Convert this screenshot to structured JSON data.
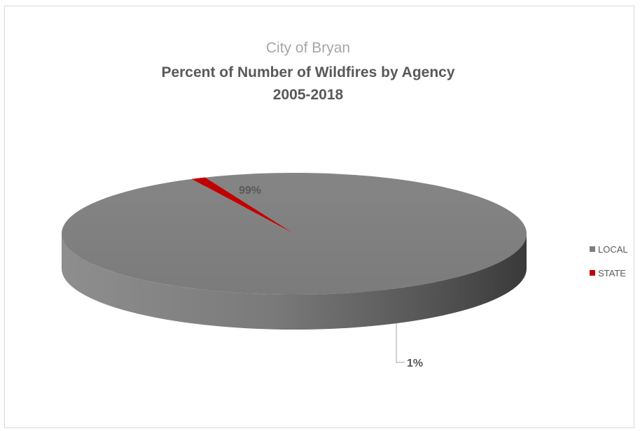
{
  "chart_data": {
    "type": "pie",
    "subtitle": "City of Bryan",
    "title_line1": "Percent of Number of Wildfires by Agency",
    "title_line2": "2005-2018",
    "categories": [
      "LOCAL",
      "STATE"
    ],
    "values": [
      99,
      1
    ],
    "data_labels": [
      "99%",
      "1%"
    ],
    "colors": [
      "#7f7f7f",
      "#c00000"
    ],
    "style": "3d",
    "legend_placement": "right"
  }
}
